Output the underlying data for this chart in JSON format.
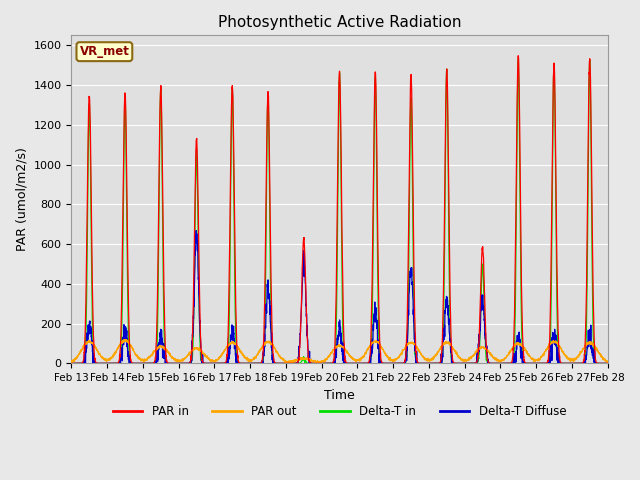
{
  "title": "Photosynthetic Active Radiation",
  "xlabel": "Time",
  "ylabel": "PAR (umol/m2/s)",
  "legend_label": "VR_met",
  "ylim": [
    0,
    1650
  ],
  "yticks": [
    0,
    200,
    400,
    600,
    800,
    1000,
    1200,
    1400,
    1600
  ],
  "xtick_labels": [
    "Feb 13",
    "Feb 14",
    "Feb 15",
    "Feb 16",
    "Feb 17",
    "Feb 18",
    "Feb 19",
    "Feb 20",
    "Feb 21",
    "Feb 22",
    "Feb 23",
    "Feb 24",
    "Feb 25",
    "Feb 26",
    "Feb 27",
    "Feb 28"
  ],
  "colors": {
    "PAR_in": "#ff0000",
    "PAR_out": "#ffa500",
    "Delta_T_in": "#00dd00",
    "Delta_T_Diffuse": "#0000cc",
    "background": "#e0e0e0",
    "grid": "#ffffff",
    "fig_bg": "#e8e8e8"
  },
  "n_days": 15,
  "day_peaks_PAR_in": [
    1350,
    1360,
    1390,
    1130,
    1395,
    1360,
    630,
    1465,
    1465,
    1450,
    1475,
    580,
    1545,
    1500,
    1530
  ],
  "day_peaks_PAR_out": [
    110,
    115,
    85,
    75,
    105,
    108,
    25,
    90,
    110,
    105,
    105,
    80,
    100,
    110,
    105
  ],
  "day_peaks_Delta_T_in": [
    1310,
    1330,
    1380,
    1070,
    1380,
    1350,
    25,
    1450,
    1435,
    1340,
    1480,
    490,
    1520,
    1500,
    1520
  ],
  "day_peaks_Delta_T_Diffuse": [
    185,
    165,
    130,
    645,
    155,
    385,
    520,
    180,
    260,
    490,
    325,
    340,
    120,
    140,
    145
  ]
}
